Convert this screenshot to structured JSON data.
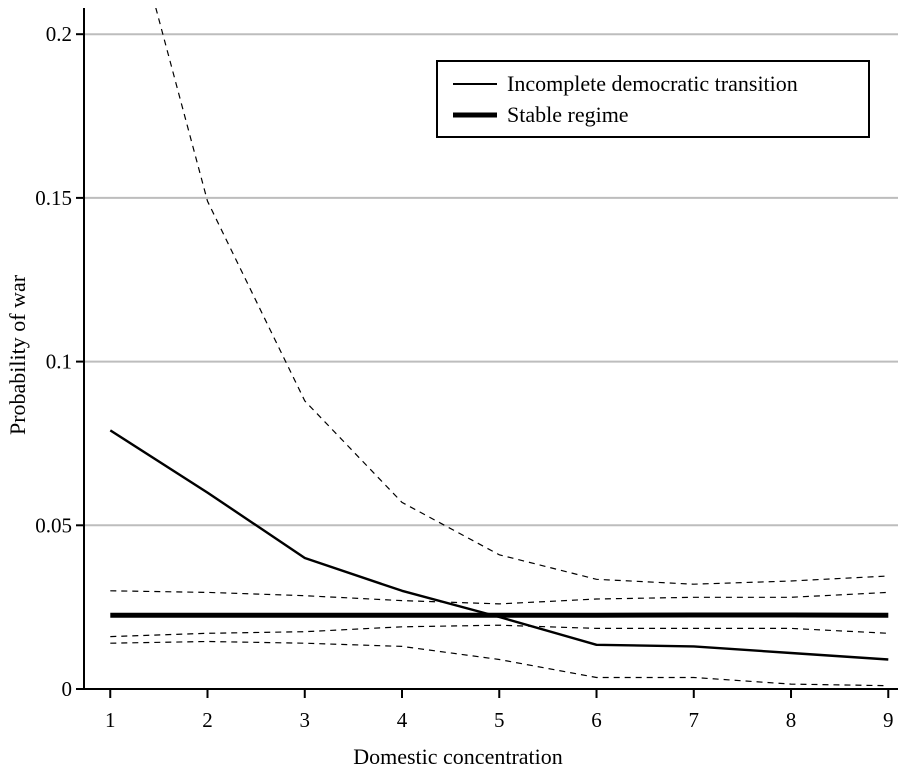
{
  "chart_data": {
    "type": "line",
    "title": "",
    "xlabel": "Domestic concentration",
    "ylabel": "Probability of war",
    "x": [
      1,
      2,
      3,
      4,
      5,
      6,
      7,
      8,
      9
    ],
    "x_ticks": [
      "1",
      "2",
      "3",
      "4",
      "5",
      "6",
      "7",
      "8",
      "9"
    ],
    "y_ticks": [
      {
        "value": 0,
        "label": "0"
      },
      {
        "value": 0.05,
        "label": "0.05"
      },
      {
        "value": 0.1,
        "label": "0.1"
      },
      {
        "value": 0.15,
        "label": "0.15"
      },
      {
        "value": 0.2,
        "label": "0.2"
      }
    ],
    "xlim": [
      0.73,
      9.1
    ],
    "ylim": [
      0,
      0.208
    ],
    "grid": "horizontal",
    "legend_position": "top-right",
    "series": [
      {
        "name": "Incomplete democratic transition",
        "style": "thin-solid",
        "values": [
          0.079,
          0.06,
          0.04,
          0.03,
          0.022,
          0.0135,
          0.013,
          0.011,
          0.009
        ]
      },
      {
        "name": "Stable regime",
        "style": "thick-solid",
        "values": [
          0.0225,
          0.0225,
          0.0225,
          0.0225,
          0.0225,
          0.0225,
          0.0226,
          0.0226,
          0.0225
        ]
      }
    ],
    "confidence_bands": [
      {
        "of": "Incomplete democratic transition",
        "upper": [
          0.26,
          0.149,
          0.088,
          0.057,
          0.041,
          0.0335,
          0.032,
          0.033,
          0.0345
        ],
        "lower": [
          0.014,
          0.0145,
          0.014,
          0.013,
          0.009,
          0.0035,
          0.0035,
          0.0015,
          0.001
        ]
      },
      {
        "of": "Stable regime",
        "upper": [
          0.03,
          0.0295,
          0.0285,
          0.027,
          0.026,
          0.0275,
          0.028,
          0.028,
          0.0295
        ],
        "lower": [
          0.016,
          0.017,
          0.0175,
          0.019,
          0.0195,
          0.0185,
          0.0185,
          0.0185,
          0.017
        ]
      }
    ]
  },
  "colors": {
    "line": "#000000",
    "grid": "#bdbdbd",
    "background": "#ffffff"
  }
}
